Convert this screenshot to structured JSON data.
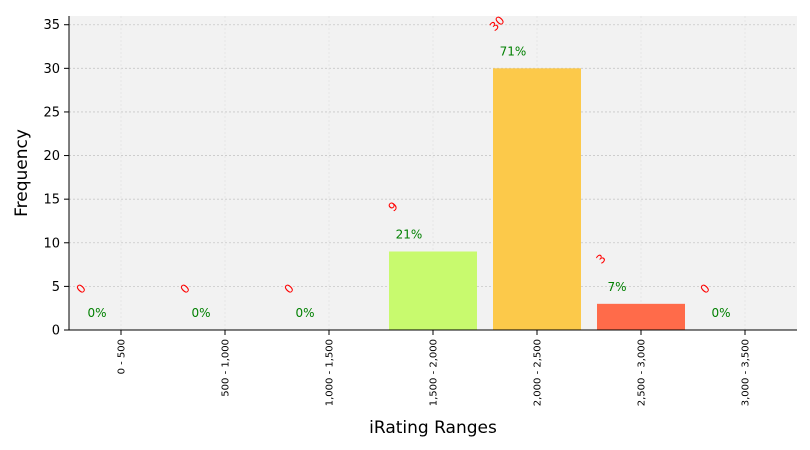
{
  "chart_data": {
    "type": "bar",
    "xlabel": "iRating Ranges",
    "ylabel": "Frequency",
    "ylim": [
      0,
      36
    ],
    "yticks": [
      0,
      5,
      10,
      15,
      20,
      25,
      30,
      35
    ],
    "grid": true,
    "categories": [
      "0 - 500",
      "500 - 1,000",
      "1,000 - 1,500",
      "1,500 - 2,000",
      "2,000 - 2,500",
      "2,500 - 3,000",
      "3,000 - 3,500"
    ],
    "values": [
      0,
      0,
      0,
      9,
      30,
      3,
      0
    ],
    "count_labels": [
      "0",
      "0",
      "0",
      "9",
      "30",
      "3",
      "0"
    ],
    "percent_labels": [
      "0%",
      "0%",
      "0%",
      "21%",
      "71%",
      "7%",
      "0%"
    ],
    "bar_colors": [
      "#ff6b4a",
      "#ff6b4a",
      "#ff6b4a",
      "#c8fa6e",
      "#fcc94a",
      "#ff6b4a",
      "#ff6b4a"
    ]
  },
  "colors": {
    "plot_background": "#f2f2f2",
    "grid": "#c8c8c8",
    "count_label": "#ff0000",
    "percent_label": "#008000"
  }
}
